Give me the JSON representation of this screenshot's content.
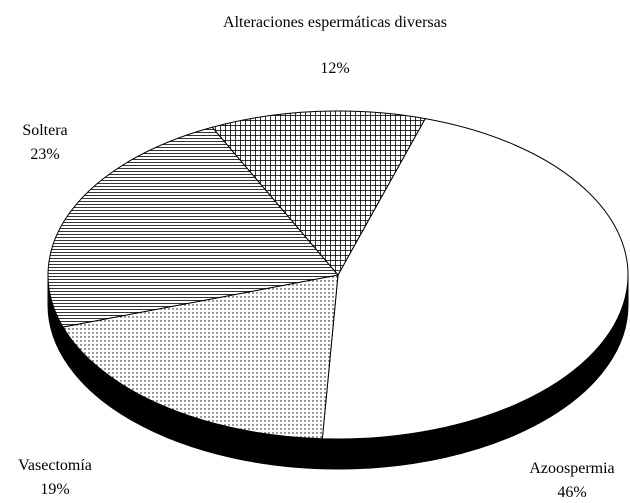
{
  "chart_data": {
    "type": "pie",
    "categories": [
      "Azoospermia",
      "Vasectomía",
      "Soltera",
      "Alteraciones espermáticas diversas"
    ],
    "values": [
      46,
      19,
      23,
      12
    ],
    "value_labels": [
      "46%",
      "19%",
      "23%",
      "12%"
    ],
    "patterns": [
      "none",
      "dots",
      "horizontal-lines",
      "crosshatch"
    ],
    "three_d": true
  }
}
